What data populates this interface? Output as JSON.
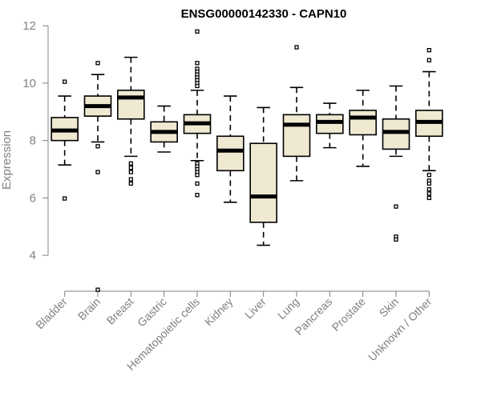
{
  "chart_data": {
    "type": "box",
    "title": "ENSG00000142330 - CAPN10",
    "xlabel": "",
    "ylabel": "Expression",
    "ylim": [
      3,
      12.2
    ],
    "yticks": [
      4,
      6,
      8,
      10,
      12
    ],
    "grid": false,
    "legend": "none",
    "colors": {
      "box_fill": "#efe9d2",
      "box_stroke": "#000000",
      "median": "#000000",
      "axis": "#808080"
    },
    "categories": [
      "Bladder",
      "Brain",
      "Breast",
      "Gastric",
      "Hematopoietic cells",
      "Kidney",
      "Liver",
      "Lung",
      "Pancreas",
      "Prostate",
      "Skin",
      "Unknown / Other"
    ],
    "boxes": [
      {
        "category": "Bladder",
        "whisker_low": 7.15,
        "q1": 8.0,
        "median": 8.35,
        "q3": 8.8,
        "whisker_high": 9.55,
        "outliers": [
          10.05,
          5.98
        ]
      },
      {
        "category": "Brain",
        "whisker_low": 7.95,
        "q1": 8.85,
        "median": 9.2,
        "q3": 9.55,
        "whisker_high": 10.3,
        "outliers": [
          10.7,
          7.8,
          6.9,
          2.8
        ]
      },
      {
        "category": "Breast",
        "whisker_low": 7.45,
        "q1": 8.75,
        "median": 9.5,
        "q3": 9.75,
        "whisker_high": 10.9,
        "outliers": [
          7.2,
          7.05,
          6.9,
          6.65,
          6.5
        ]
      },
      {
        "category": "Gastric",
        "whisker_low": 7.6,
        "q1": 7.95,
        "median": 8.3,
        "q3": 8.65,
        "whisker_high": 9.2,
        "outliers": []
      },
      {
        "category": "Hematopoietic cells",
        "whisker_low": 7.3,
        "q1": 8.25,
        "median": 8.6,
        "q3": 8.9,
        "whisker_high": 9.75,
        "outliers": [
          11.8,
          10.7,
          10.5,
          10.4,
          10.3,
          10.2,
          10.1,
          10.0,
          9.9,
          7.2,
          7.1,
          7.0,
          6.9,
          6.8,
          6.5,
          6.1
        ]
      },
      {
        "category": "Kidney",
        "whisker_low": 5.85,
        "q1": 6.95,
        "median": 7.65,
        "q3": 8.15,
        "whisker_high": 9.55,
        "outliers": []
      },
      {
        "category": "Liver",
        "whisker_low": 4.35,
        "q1": 5.15,
        "median": 6.05,
        "q3": 7.9,
        "whisker_high": 9.15,
        "outliers": []
      },
      {
        "category": "Lung",
        "whisker_low": 6.6,
        "q1": 7.45,
        "median": 8.55,
        "q3": 8.9,
        "whisker_high": 9.85,
        "outliers": [
          11.25
        ]
      },
      {
        "category": "Pancreas",
        "whisker_low": 7.75,
        "q1": 8.25,
        "median": 8.65,
        "q3": 8.9,
        "whisker_high": 9.3,
        "outliers": []
      },
      {
        "category": "Prostate",
        "whisker_low": 7.1,
        "q1": 8.2,
        "median": 8.8,
        "q3": 9.05,
        "whisker_high": 9.75,
        "outliers": []
      },
      {
        "category": "Skin",
        "whisker_low": 7.45,
        "q1": 7.7,
        "median": 8.3,
        "q3": 8.75,
        "whisker_high": 9.9,
        "outliers": [
          5.7,
          4.65,
          4.55
        ]
      },
      {
        "category": "Unknown / Other",
        "whisker_low": 6.95,
        "q1": 8.15,
        "median": 8.65,
        "q3": 9.05,
        "whisker_high": 10.4,
        "outliers": [
          11.15,
          10.8,
          6.8,
          6.6,
          6.5,
          6.3,
          6.15,
          6.0
        ]
      }
    ]
  }
}
